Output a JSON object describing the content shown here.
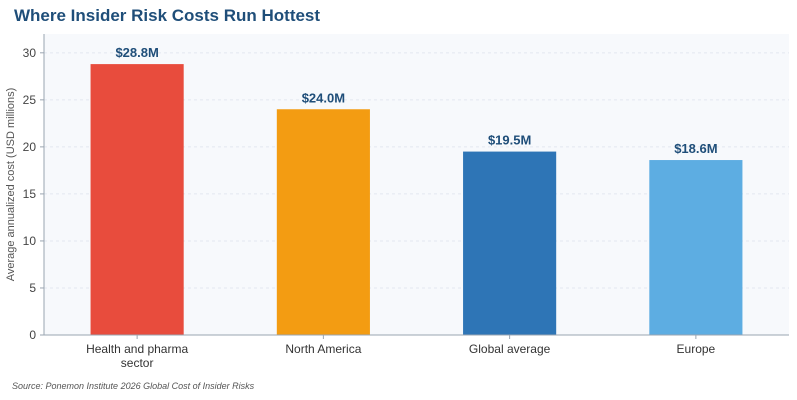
{
  "title": "Where Insider Risk Costs Run Hottest",
  "source": "Source: Ponemon Institute 2026 Global Cost of Insider Risks",
  "chart_data": {
    "type": "bar",
    "title": "Where Insider Risk Costs Run Hottest",
    "xlabel": "",
    "ylabel": "Average annualized cost (USD millions)",
    "categories": [
      [
        "Health and pharma",
        "sector"
      ],
      [
        "North America"
      ],
      [
        "Global average"
      ],
      [
        "Europe"
      ]
    ],
    "values": [
      28.8,
      24.0,
      19.5,
      18.6
    ],
    "data_labels": [
      "$28.8M",
      "$24.0M",
      "$19.5M",
      "$18.6M"
    ],
    "colors": [
      "#e84c3d",
      "#f39c12",
      "#2e75b6",
      "#5dade2"
    ],
    "ylim": [
      0,
      32
    ],
    "yticks": [
      0,
      5,
      10,
      15,
      20,
      25,
      30
    ],
    "grid": true,
    "legend": "none"
  }
}
